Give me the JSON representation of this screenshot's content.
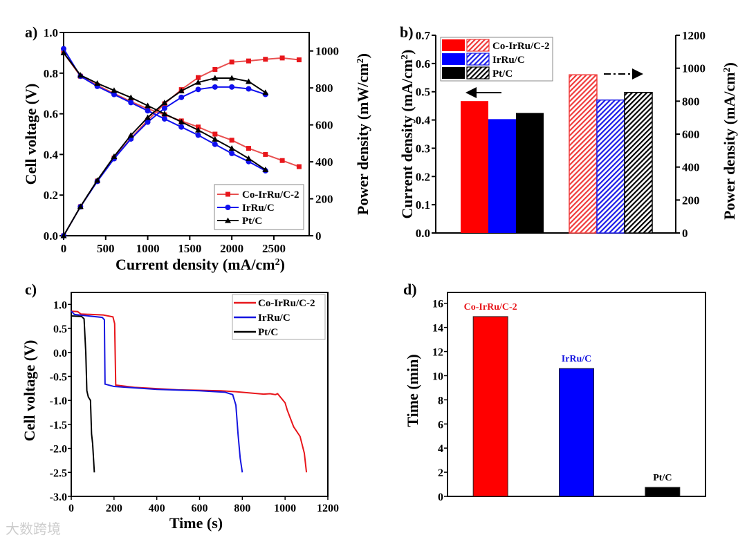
{
  "watermark": "大数跨境",
  "chart_data": [
    {
      "panel": "a)",
      "type": "line",
      "xlabel": {
        "pre": "Current density (mA/cm",
        "sup": "2",
        "post": ")"
      },
      "ylabel": "Cell voltage (V)",
      "y2label": {
        "pre": "Power density (mW/cm",
        "sup": "2",
        "post": ")"
      },
      "xlim": [
        0,
        2920
      ],
      "ylim": [
        0,
        1.0
      ],
      "y2lim": [
        0,
        1100
      ],
      "xticks": [
        0,
        500,
        1000,
        1500,
        2000,
        2500
      ],
      "yticks": [
        0.0,
        0.2,
        0.4,
        0.6,
        0.8,
        1.0
      ],
      "y2ticks": [
        0,
        200,
        400,
        600,
        800,
        1000
      ],
      "legend_position": "bottom-right",
      "x": [
        0,
        200,
        400,
        600,
        800,
        1000,
        1200,
        1400,
        1600,
        1800,
        2000,
        2200,
        2400,
        2600,
        2800
      ],
      "series": [
        {
          "name": "Co-IrRu/C-2",
          "color": "#e8161b",
          "marker": "square",
          "voltage": [
            0.9,
            0.785,
            0.74,
            0.7,
            0.66,
            0.625,
            0.595,
            0.565,
            0.535,
            0.5,
            0.47,
            0.43,
            0.4,
            0.37,
            0.34
          ],
          "power": [
            0,
            157,
            296,
            420,
            528,
            625,
            714,
            791,
            856,
            900,
            940,
            946,
            955,
            962,
            952
          ]
        },
        {
          "name": "IrRu/C",
          "color": "#1010ee",
          "marker": "circle",
          "voltage": [
            0.92,
            0.785,
            0.735,
            0.695,
            0.655,
            0.615,
            0.575,
            0.535,
            0.495,
            0.45,
            0.405,
            0.365,
            0.32
          ],
          "power": [
            0,
            157,
            294,
            417,
            524,
            615,
            690,
            749,
            792,
            805,
            805,
            795,
            765
          ]
        },
        {
          "name": "Pt/C",
          "color": "#000000",
          "marker": "triangle",
          "voltage": [
            0.9,
            0.79,
            0.75,
            0.715,
            0.68,
            0.64,
            0.6,
            0.56,
            0.52,
            0.475,
            0.43,
            0.38,
            0.325
          ],
          "power": [
            0,
            158,
            300,
            429,
            544,
            640,
            720,
            784,
            830,
            853,
            853,
            835,
            775
          ]
        }
      ]
    },
    {
      "panel": "b)",
      "type": "bar",
      "ylabel": {
        "pre": "Current density (mA/cm",
        "sup": "2",
        "post": ")"
      },
      "y2label": {
        "pre": "Power density (mA/cm",
        "sup": "2",
        "post": ")"
      },
      "ylim": [
        0,
        0.7
      ],
      "y2lim": [
        0,
        1200
      ],
      "yticks": [
        0.0,
        0.1,
        0.2,
        0.3,
        0.4,
        0.5,
        0.6,
        0.7
      ],
      "y2ticks": [
        0,
        200,
        400,
        600,
        800,
        1000,
        1200
      ],
      "legend_position": "top-left",
      "series": [
        {
          "name": "Co-IrRu/C-2",
          "color": "#ff0000",
          "current_density": 0.467,
          "power_density": 960
        },
        {
          "name": "IrRu/C",
          "color": "#0000ff",
          "current_density": 0.403,
          "power_density": 807
        },
        {
          "name": "Pt/C",
          "color": "#000000",
          "current_density": 0.425,
          "power_density": 853
        }
      ]
    },
    {
      "panel": "c)",
      "type": "line",
      "xlabel": "Time (s)",
      "ylabel": "Cell voltage (V)",
      "xlim": [
        0,
        1200
      ],
      "ylim": [
        -3.0,
        1.25
      ],
      "xticks": [
        0,
        200,
        400,
        600,
        800,
        1000,
        1200
      ],
      "yticks": [
        -3.0,
        -2.5,
        -2.0,
        -1.5,
        -1.0,
        -0.5,
        0.0,
        0.5,
        1.0
      ],
      "legend_position": "top-right",
      "series": [
        {
          "name": "Co-IrRu/C-2",
          "color": "#e8161b",
          "points": [
            [
              0,
              0.86
            ],
            [
              30,
              0.85
            ],
            [
              45,
              0.8
            ],
            [
              150,
              0.78
            ],
            [
              195,
              0.74
            ],
            [
              203,
              0.6
            ],
            [
              208,
              -0.68
            ],
            [
              300,
              -0.73
            ],
            [
              500,
              -0.78
            ],
            [
              700,
              -0.8
            ],
            [
              770,
              -0.82
            ],
            [
              900,
              -0.87
            ],
            [
              930,
              -0.86
            ],
            [
              955,
              -0.88
            ],
            [
              965,
              -0.86
            ],
            [
              1000,
              -1.05
            ],
            [
              1010,
              -1.2
            ],
            [
              1040,
              -1.55
            ],
            [
              1070,
              -1.75
            ],
            [
              1090,
              -2.1
            ],
            [
              1100,
              -2.5
            ]
          ]
        },
        {
          "name": "IrRu/C",
          "color": "#1515e0",
          "points": [
            [
              0,
              0.86
            ],
            [
              15,
              0.79
            ],
            [
              145,
              0.73
            ],
            [
              155,
              0.68
            ],
            [
              158,
              -0.66
            ],
            [
              200,
              -0.71
            ],
            [
              400,
              -0.77
            ],
            [
              600,
              -0.8
            ],
            [
              720,
              -0.83
            ],
            [
              755,
              -0.88
            ],
            [
              770,
              -1.1
            ],
            [
              780,
              -1.7
            ],
            [
              790,
              -2.2
            ],
            [
              800,
              -2.5
            ]
          ]
        },
        {
          "name": "Pt/C",
          "color": "#000000",
          "points": [
            [
              0,
              0.76
            ],
            [
              48,
              0.75
            ],
            [
              60,
              0.7
            ],
            [
              68,
              0.0
            ],
            [
              73,
              -0.8
            ],
            [
              80,
              -0.93
            ],
            [
              90,
              -1.0
            ],
            [
              95,
              -1.7
            ],
            [
              100,
              -1.9
            ],
            [
              108,
              -2.5
            ]
          ]
        }
      ]
    },
    {
      "panel": "d)",
      "type": "bar",
      "ylabel": "Time (min)",
      "ylim": [
        0,
        16.9
      ],
      "yticks": [
        0,
        2,
        4,
        6,
        8,
        10,
        12,
        14,
        16
      ],
      "categories": [
        "Co-IrRu/C-2",
        "IrRu/C",
        "Pt/C"
      ],
      "values": [
        14.9,
        10.6,
        0.75
      ],
      "colors": [
        "#ff0000",
        "#0000ff",
        "#000000"
      ],
      "label_colors": [
        "#e8161b",
        "#1515e0",
        "#000000"
      ]
    }
  ]
}
